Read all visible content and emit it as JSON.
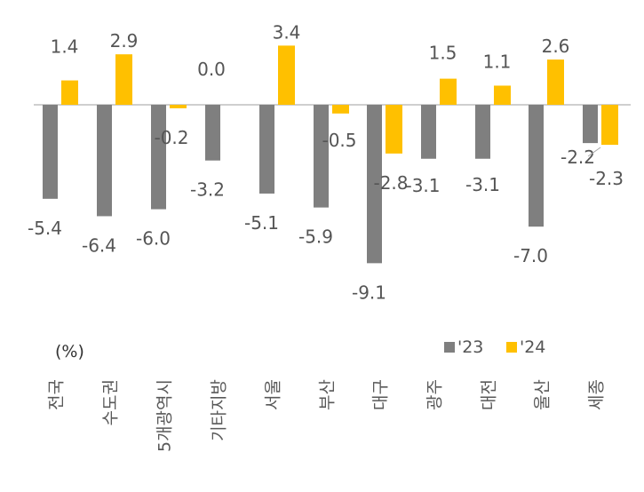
{
  "chart_data": {
    "type": "bar",
    "unit_label": "(%)",
    "categories": [
      "전국",
      "수도권",
      "5개광역시",
      "기타지방",
      "서울",
      "부산",
      "대구",
      "광주",
      "대전",
      "울산",
      "세종"
    ],
    "series": [
      {
        "name": "'23",
        "color": "#7f7f7f",
        "values": [
          -5.4,
          -6.4,
          -6.0,
          -3.2,
          -5.1,
          -5.9,
          -9.1,
          -3.1,
          -3.1,
          -7.0,
          -2.2
        ]
      },
      {
        "name": "'24",
        "color": "#ffc000",
        "values": [
          1.4,
          2.9,
          -0.2,
          0.0,
          3.4,
          -0.5,
          -2.8,
          1.5,
          1.1,
          2.6,
          -2.3
        ]
      }
    ],
    "labels_23": [
      "-5.4",
      "-6.4",
      "-6.0",
      "-3.2",
      "-5.1",
      "-5.9",
      "-9.1",
      "-3.1",
      "-3.1",
      "-7.0",
      "-2.2"
    ],
    "labels_24": [
      "1.4",
      "2.9",
      "-0.2",
      "0.0",
      "3.4",
      "-0.5",
      "-2.8",
      "1.5",
      "1.1",
      "2.6",
      "-2.3"
    ],
    "legend_position": "top-right",
    "grid": false
  }
}
